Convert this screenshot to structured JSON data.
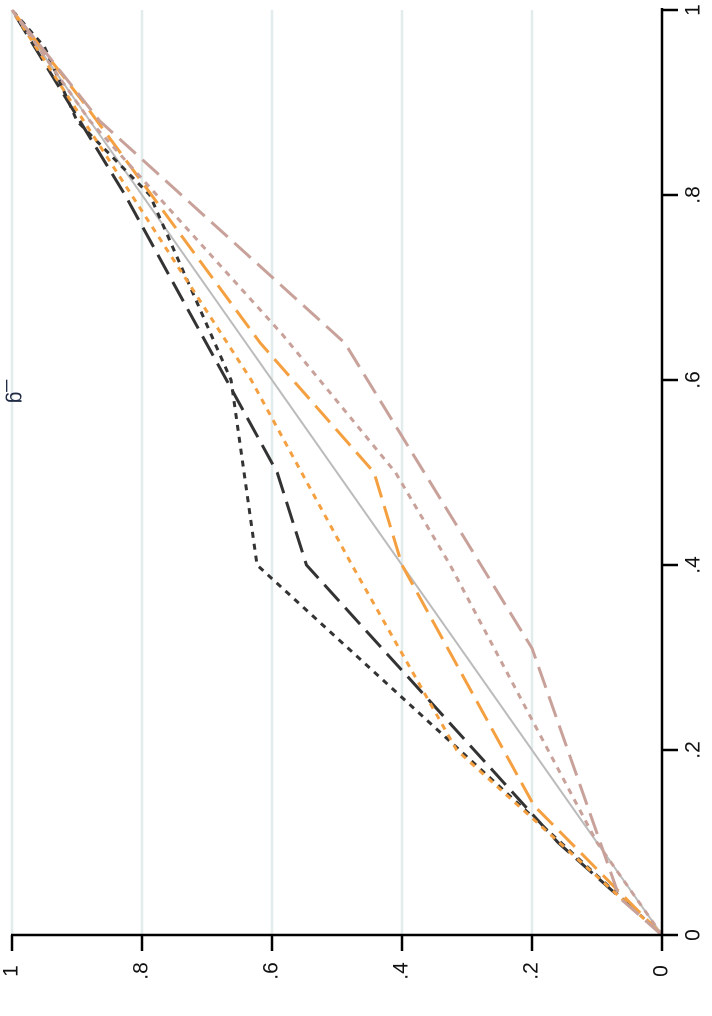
{
  "chart_data": {
    "type": "line",
    "title": "",
    "xlabel": "",
    "ylabel": "",
    "xlim": [
      0,
      1
    ],
    "ylim": [
      0,
      1
    ],
    "xticks": [
      0,
      0.2,
      0.4,
      0.6,
      0.8,
      1
    ],
    "xtick_labels": [
      "0",
      ".2",
      ".4",
      ".6",
      ".8",
      "1"
    ],
    "yticks": [
      0,
      0.2,
      0.4,
      0.6,
      0.8,
      1
    ],
    "ytick_labels": [
      "0",
      ".2",
      ".4",
      ".6",
      ".8",
      "1"
    ],
    "grid": true,
    "orientation": "rotated-90",
    "series": [
      {
        "color": "#bbbbbb",
        "dash": "solid",
        "points": [
          [
            0,
            0
          ],
          [
            1,
            1
          ]
        ]
      },
      {
        "color": "#333333",
        "dash": "short-dash",
        "points": [
          [
            0,
            0
          ],
          [
            0.4,
            0.623
          ],
          [
            0.6,
            0.663
          ],
          [
            0.8,
            0.788
          ],
          [
            0.88,
            0.9
          ],
          [
            0.96,
            0.95
          ],
          [
            1,
            1
          ]
        ]
      },
      {
        "color": "#333333",
        "dash": "long-dash",
        "points": [
          [
            0,
            0
          ],
          [
            0.1,
            0.16
          ],
          [
            0.4,
            0.547
          ],
          [
            0.5,
            0.592
          ],
          [
            0.8,
            0.826
          ],
          [
            1,
            1
          ]
        ]
      },
      {
        "color": "#f5a040",
        "dash": "short-dash",
        "points": [
          [
            0,
            0
          ],
          [
            0.2,
            0.316
          ],
          [
            0.4,
            0.477
          ],
          [
            0.6,
            0.632
          ],
          [
            1,
            1
          ]
        ]
      },
      {
        "color": "#f5a040",
        "dash": "long-dash",
        "points": [
          [
            0,
            0
          ],
          [
            0.14,
            0.197
          ],
          [
            0.4,
            0.4
          ],
          [
            0.5,
            0.443
          ],
          [
            0.64,
            0.618
          ],
          [
            0.9,
            0.89
          ],
          [
            1,
            1
          ]
        ]
      },
      {
        "color": "#c8a29a",
        "dash": "short-dash",
        "points": [
          [
            0,
            0
          ],
          [
            0.1,
            0.1
          ],
          [
            0.4,
            0.326
          ],
          [
            0.5,
            0.41
          ],
          [
            0.65,
            0.585
          ],
          [
            0.88,
            0.88
          ],
          [
            1,
            1
          ]
        ]
      },
      {
        "color": "#c8a29a",
        "dash": "long-dash",
        "points": [
          [
            0,
            0
          ],
          [
            0.04,
            0.065
          ],
          [
            0.31,
            0.2
          ],
          [
            0.64,
            0.488
          ],
          [
            0.88,
            0.865
          ],
          [
            1,
            1
          ]
        ]
      }
    ]
  },
  "partial_title_glyph": "_g"
}
